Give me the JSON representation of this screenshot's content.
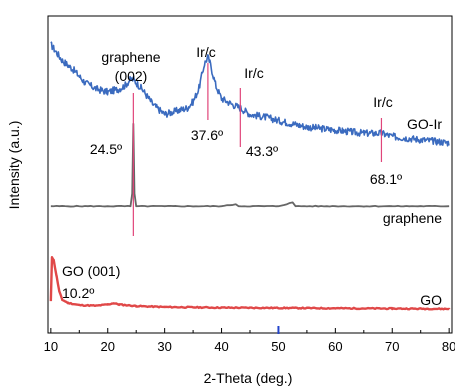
{
  "chart_data": {
    "type": "line",
    "title": "",
    "xlabel": "2-Theta (deg.)",
    "ylabel": "Intensity (a.u.)",
    "xlim": [
      9.5,
      80.5
    ],
    "ylim": [
      0,
      100
    ],
    "xticks": [
      10,
      20,
      30,
      40,
      50,
      60,
      70,
      80
    ],
    "grid": false,
    "series": [
      {
        "name": "GO-Ir",
        "color": "#3b6bbf",
        "x": [
          10,
          12,
          14,
          16,
          18,
          20,
          22,
          23,
          24,
          24.5,
          25,
          26,
          28,
          30,
          32,
          34,
          35,
          36,
          37,
          37.6,
          38,
          39,
          40,
          42,
          43.3,
          45,
          48,
          50,
          55,
          60,
          65,
          68.1,
          70,
          75,
          80
        ],
        "y": [
          91,
          86,
          83,
          79,
          77,
          76,
          77,
          78,
          80,
          80,
          79,
          77,
          72,
          69,
          70,
          71,
          73,
          77,
          85,
          87,
          85,
          78,
          74,
          72,
          71,
          69,
          68,
          67,
          65,
          64,
          63,
          63,
          62,
          61,
          60
        ]
      },
      {
        "name": "graphene",
        "color": "#666666",
        "x": [
          10,
          20,
          24,
          24.3,
          24.5,
          24.7,
          25,
          30,
          40,
          42.5,
          43,
          50,
          52.5,
          53,
          60,
          70,
          80
        ],
        "y": [
          40,
          40,
          40,
          44,
          66,
          44,
          40,
          40,
          40,
          40.6,
          40,
          40,
          41.2,
          40,
          40,
          40,
          40
        ]
      },
      {
        "name": "GO",
        "color": "#e04848",
        "x": [
          10,
          10.2,
          10.5,
          11,
          11.5,
          12,
          13,
          15,
          18,
          20,
          21,
          22,
          25,
          30,
          40,
          50,
          60,
          70,
          80
        ],
        "y": [
          10,
          24,
          23,
          18,
          13,
          10.5,
          9.5,
          8.8,
          8.6,
          9,
          9.4,
          9,
          8.5,
          8.2,
          8,
          7.9,
          7.8,
          7.7,
          7.6
        ]
      }
    ],
    "peaks": [
      {
        "x": 24.5,
        "label": "24.5°",
        "phase": "graphene\n(002)"
      },
      {
        "x": 37.6,
        "label": "37.6°",
        "phase": "Ir/c"
      },
      {
        "x": 43.3,
        "label": "43.3°",
        "phase": "Ir/c"
      },
      {
        "x": 68.1,
        "label": "68.1°",
        "phase": "Ir/c"
      }
    ],
    "annotations": {
      "graphene_peak_name": "graphene",
      "graphene_peak_index": "(002)",
      "ir_label_1": "Ir/c",
      "ir_label_2": "Ir/c",
      "ir_label_3": "Ir/c",
      "angle_1": "24.5º",
      "angle_2": "37.6º",
      "angle_3": "43.3º",
      "angle_4": "68.1º",
      "go_peak_label": "GO  (001)",
      "go_peak_angle": "10.2º",
      "series_label_goir": "GO-Ir",
      "series_label_graphene": "graphene",
      "series_label_go": "GO"
    },
    "marker_color": "#e0457a"
  }
}
